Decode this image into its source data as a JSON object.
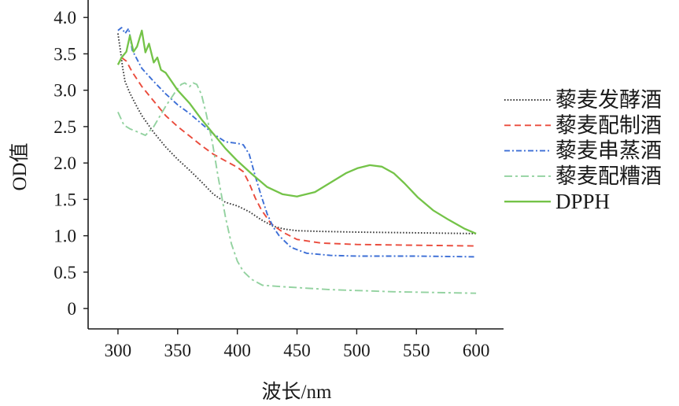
{
  "chart_data": {
    "type": "line",
    "xlabel": "波长/nm",
    "ylabel": "OD值",
    "xlim": [
      275,
      623
    ],
    "ylim": [
      -0.28,
      4.24
    ],
    "xtick_labels": [
      "300",
      "350",
      "400",
      "450",
      "500",
      "550",
      "600"
    ],
    "ytick_labels": [
      "0",
      "0.5",
      "1.0",
      "1.5",
      "2.0",
      "2.5",
      "3.0",
      "3.5",
      "4.0"
    ],
    "grid": false,
    "legend": "right",
    "series": [
      {
        "name": "藜麦发酵酒",
        "color": "#3a3a3a",
        "style": "dotted",
        "x": [
          300,
          302,
          304,
          306,
          310,
          315,
          320,
          330,
          340,
          350,
          360,
          370,
          380,
          390,
          400,
          410,
          420,
          430,
          440,
          450,
          470,
          500,
          550,
          600
        ],
        "y": [
          3.78,
          3.55,
          3.3,
          3.12,
          2.96,
          2.8,
          2.65,
          2.42,
          2.22,
          2.05,
          1.9,
          1.74,
          1.57,
          1.46,
          1.41,
          1.33,
          1.22,
          1.13,
          1.09,
          1.07,
          1.06,
          1.05,
          1.04,
          1.03
        ]
      },
      {
        "name": "藜麦配制酒",
        "color": "#ea4b3c",
        "style": "dashed",
        "x": [
          303,
          307,
          312,
          320,
          330,
          340,
          350,
          360,
          370,
          380,
          390,
          400,
          405,
          410,
          415,
          420,
          428,
          438,
          450,
          470,
          500,
          550,
          600
        ],
        "y": [
          3.45,
          3.4,
          3.25,
          3.05,
          2.85,
          2.65,
          2.5,
          2.37,
          2.24,
          2.12,
          2.03,
          1.94,
          1.88,
          1.72,
          1.52,
          1.36,
          1.17,
          1.05,
          0.95,
          0.9,
          0.88,
          0.87,
          0.86
        ]
      },
      {
        "name": "藜麦串蒸酒",
        "color": "#3d6fd6",
        "style": "dash-dot",
        "x": [
          300,
          303,
          306,
          309,
          312,
          320,
          330,
          340,
          350,
          360,
          370,
          380,
          390,
          400,
          405,
          410,
          415,
          420,
          425,
          430,
          435,
          445,
          458,
          478,
          500,
          550,
          600
        ],
        "y": [
          3.82,
          3.86,
          3.78,
          3.85,
          3.55,
          3.3,
          3.12,
          2.95,
          2.8,
          2.68,
          2.54,
          2.4,
          2.29,
          2.27,
          2.25,
          2.12,
          1.82,
          1.55,
          1.3,
          1.12,
          1.0,
          0.84,
          0.76,
          0.73,
          0.72,
          0.72,
          0.71
        ]
      },
      {
        "name": "藜麦配糟酒",
        "color": "#93d2a0",
        "style": "long-dash-dot",
        "x": [
          300,
          305,
          310,
          316,
          323,
          330,
          340,
          349,
          353,
          356,
          360,
          363,
          366,
          370,
          374,
          379,
          384,
          390,
          395,
          400,
          405,
          412,
          421,
          438,
          478,
          531,
          600
        ],
        "y": [
          2.7,
          2.52,
          2.47,
          2.43,
          2.38,
          2.5,
          2.78,
          3.0,
          3.08,
          3.1,
          3.05,
          3.1,
          3.08,
          2.94,
          2.67,
          2.29,
          1.8,
          1.26,
          0.89,
          0.65,
          0.51,
          0.4,
          0.32,
          0.3,
          0.26,
          0.23,
          0.21
        ]
      },
      {
        "name": "DPPH",
        "color": "#74c348",
        "style": "solid",
        "x": [
          300,
          303,
          307,
          310,
          313,
          316,
          320,
          323,
          326,
          330,
          333,
          336,
          340,
          350,
          360,
          370,
          380,
          390,
          400,
          412,
          425,
          438,
          450,
          465,
          478,
          491,
          501,
          511,
          521,
          531,
          540,
          551,
          564,
          577,
          590,
          600
        ],
        "y": [
          3.35,
          3.45,
          3.53,
          3.75,
          3.53,
          3.6,
          3.82,
          3.52,
          3.64,
          3.38,
          3.45,
          3.28,
          3.24,
          3.0,
          2.82,
          2.6,
          2.4,
          2.2,
          2.03,
          1.85,
          1.67,
          1.57,
          1.54,
          1.6,
          1.73,
          1.86,
          1.93,
          1.97,
          1.95,
          1.86,
          1.72,
          1.53,
          1.35,
          1.22,
          1.1,
          1.03
        ]
      }
    ]
  }
}
